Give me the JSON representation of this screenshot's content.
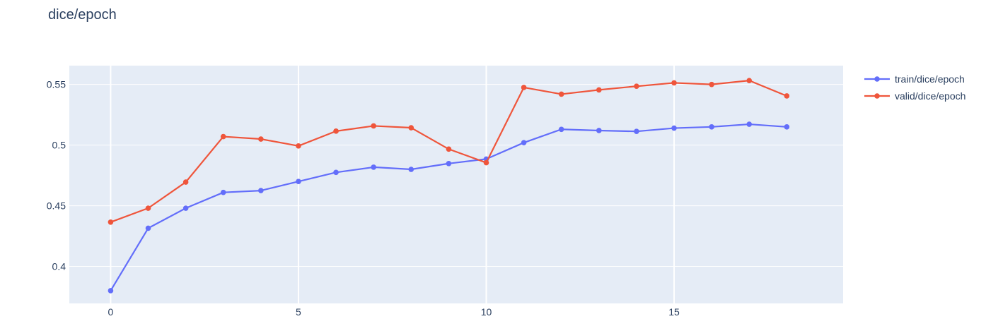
{
  "chart_data": {
    "type": "line",
    "title": "dice/epoch",
    "xlabel": "",
    "ylabel": "",
    "xlim": [
      -1.1,
      19.5
    ],
    "ylim": [
      0.3695,
      0.5655
    ],
    "xticks": [
      0,
      5,
      10,
      15
    ],
    "yticks": [
      0.4,
      0.45,
      0.5,
      0.55
    ],
    "ytick_labels": [
      "0.4",
      "0.45",
      "0.5",
      "0.55"
    ],
    "grid": true,
    "legend_position": "top-right",
    "colors": {
      "plot_bg": "#e5ecf6",
      "grid": "#ffffff",
      "text": "#2a3f5f"
    },
    "x": [
      0,
      1,
      2,
      3,
      4,
      5,
      6,
      7,
      8,
      9,
      10,
      11,
      12,
      13,
      14,
      15,
      16,
      17,
      18
    ],
    "series": [
      {
        "name": "train/dice/epoch",
        "color": "#636efa",
        "values": [
          0.38,
          0.4315,
          0.448,
          0.461,
          0.4625,
          0.47,
          0.4775,
          0.4818,
          0.48,
          0.4848,
          0.4885,
          0.502,
          0.513,
          0.512,
          0.5113,
          0.514,
          0.515,
          0.5172,
          0.515
        ]
      },
      {
        "name": "valid/dice/epoch",
        "color": "#ef553b",
        "values": [
          0.4365,
          0.448,
          0.4695,
          0.507,
          0.505,
          0.4993,
          0.5115,
          0.5158,
          0.5143,
          0.4967,
          0.4855,
          0.5475,
          0.542,
          0.5455,
          0.5485,
          0.5513,
          0.55,
          0.5532,
          0.5405
        ]
      }
    ]
  }
}
